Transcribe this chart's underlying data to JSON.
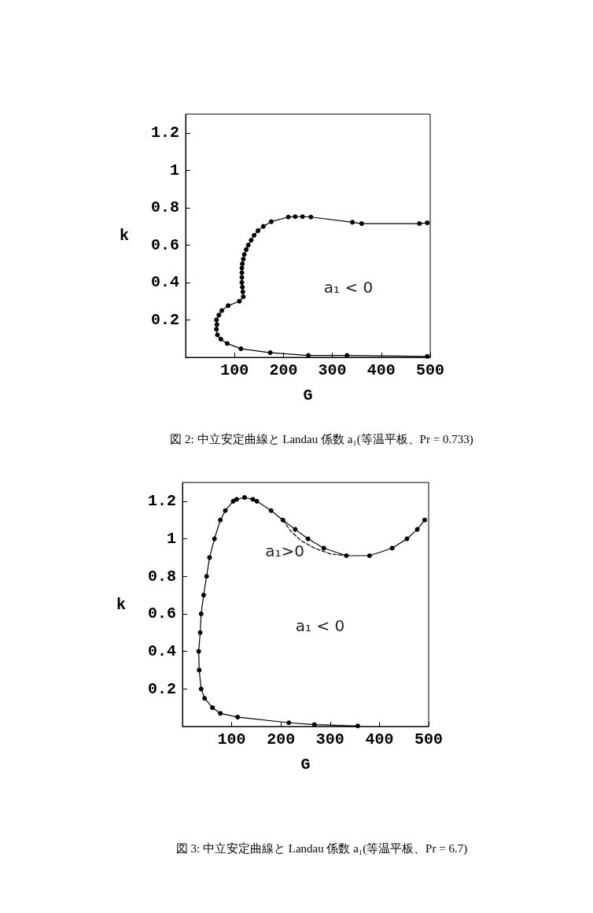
{
  "chart_data": [
    {
      "type": "line",
      "xlabel": "G",
      "ylabel": "k",
      "xlim": [
        0,
        500
      ],
      "ylim": [
        0,
        1.3
      ],
      "xticks": [
        100,
        200,
        300,
        400,
        500
      ],
      "yticks": [
        0.2,
        0.4,
        0.6,
        0.8,
        1,
        1.2
      ],
      "marker": "circle",
      "line_style": "solid",
      "series": [
        {
          "color": "#000000",
          "x": [
            494,
            330,
            251,
            173,
            113,
            85,
            72,
            65,
            63,
            64,
            63,
            68,
            74,
            87,
            110,
            118,
            117,
            116,
            115,
            115,
            115,
            115,
            116,
            118,
            120,
            124,
            128,
            134,
            140,
            148,
            159,
            175,
            210,
            224,
            239,
            256,
            341,
            360,
            478,
            494
          ],
          "values": [
            0.005,
            0.01,
            0.01,
            0.025,
            0.046,
            0.074,
            0.097,
            0.12,
            0.15,
            0.175,
            0.2,
            0.226,
            0.25,
            0.276,
            0.3,
            0.324,
            0.35,
            0.375,
            0.4,
            0.427,
            0.452,
            0.477,
            0.5,
            0.525,
            0.55,
            0.576,
            0.6,
            0.626,
            0.652,
            0.677,
            0.7,
            0.725,
            0.75,
            0.752,
            0.752,
            0.75,
            0.722,
            0.715,
            0.715,
            0.719
          ]
        }
      ],
      "annotations": [
        "a₁ < 0",
        "図 2: 中立安定曲線と Landau 係数 a₁(等温平板、Pr = 0.733)"
      ]
    },
    {
      "type": "line",
      "xlabel": "G",
      "ylabel": "k",
      "xlim": [
        0,
        500
      ],
      "ylim": [
        0,
        1.3
      ],
      "xticks": [
        100,
        200,
        300,
        400,
        500
      ],
      "yticks": [
        0.2,
        0.4,
        0.6,
        0.8,
        1,
        1.2
      ],
      "marker": "circle",
      "line_style": "solid",
      "series": [
        {
          "color": "#000000",
          "x": [
            356,
            268,
            216,
            112,
            77,
            61,
            45,
            38,
            34,
            33,
            36,
            38,
            43,
            49,
            55,
            65,
            77,
            87,
            103,
            110,
            126,
            143,
            151,
            180,
            204,
            229,
            255,
            287,
            333,
            380,
            426,
            456,
            477,
            492
          ],
          "values": [
            0.003,
            0.01,
            0.02,
            0.05,
            0.07,
            0.1,
            0.15,
            0.2,
            0.3,
            0.4,
            0.5,
            0.6,
            0.7,
            0.8,
            0.9,
            1.0,
            1.1,
            1.15,
            1.2,
            1.21,
            1.22,
            1.21,
            1.2,
            1.15,
            1.1,
            1.05,
            1.0,
            0.95,
            0.91,
            0.91,
            0.95,
            1.0,
            1.05,
            1.1
          ]
        },
        {
          "color": "#000000",
          "marker": "none",
          "line_style": "dashed",
          "x": [
            204,
            220,
            241,
            268,
            300,
            333
          ],
          "values": [
            1.1,
            1.04,
            0.99,
            0.95,
            0.92,
            0.91
          ]
        }
      ],
      "annotations": [
        "a₁>0",
        "a₁ < 0",
        "図 3: 中立安定曲線と Landau 係数 a₁(等温平板、Pr = 6.7)"
      ]
    }
  ]
}
